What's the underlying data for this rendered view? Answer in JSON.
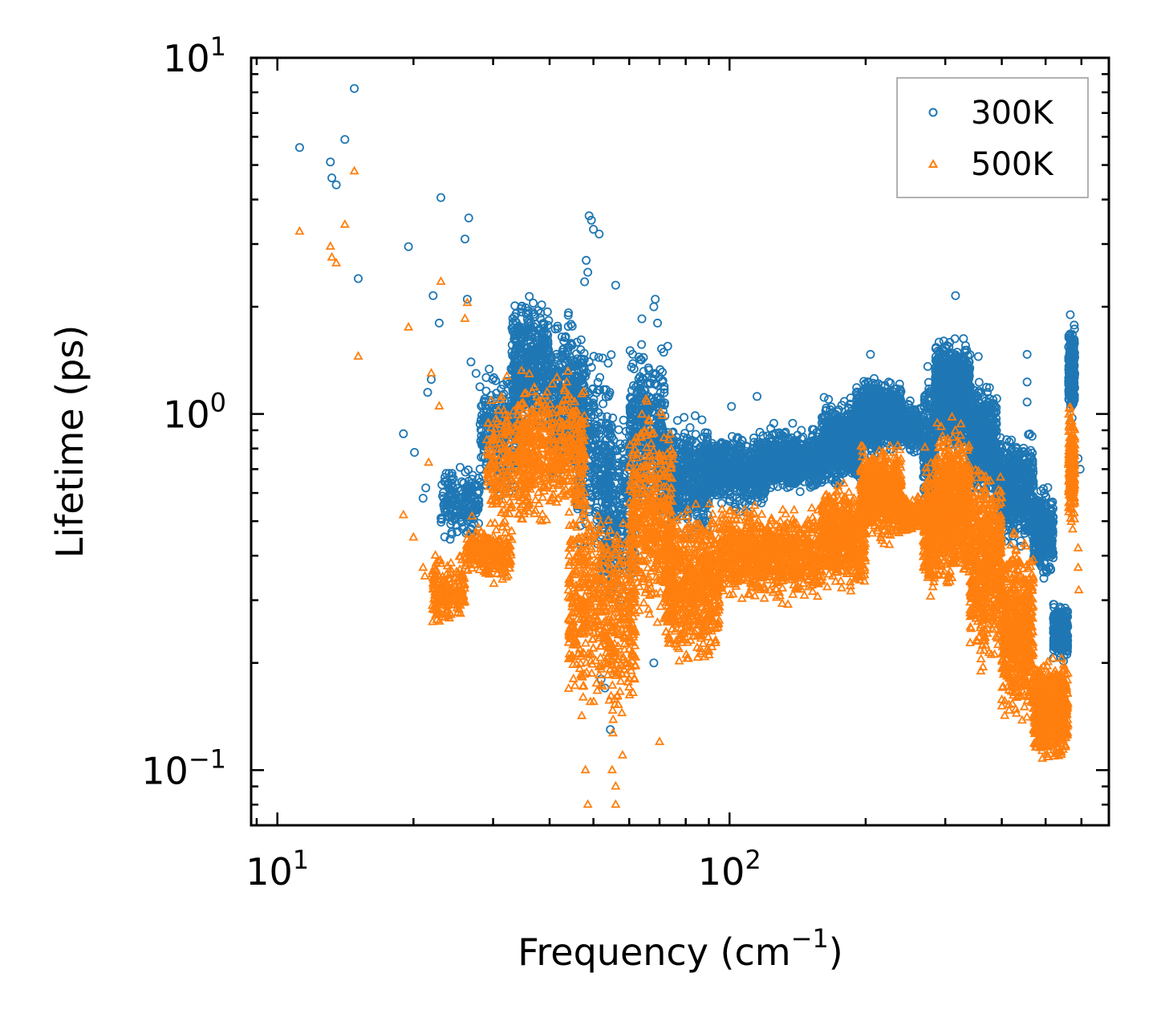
{
  "chart_data": {
    "type": "scatter",
    "title": "",
    "xlabel": "Frequency (cm",
    "xlabel_sup": "−1",
    "xlabel_end": ")",
    "ylabel": "Lifetime (ps)",
    "xscale": "log",
    "yscale": "log",
    "xlim": [
      8.75,
      690
    ],
    "ylim": [
      0.07,
      10
    ],
    "x_ticks": [
      {
        "base": "10",
        "exp": "1"
      },
      {
        "base": "10",
        "exp": "2"
      }
    ],
    "y_ticks": [
      {
        "base": "10",
        "exp": "1"
      },
      {
        "base": "10",
        "exp": "0"
      },
      {
        "base": "10",
        "exp": "−1"
      }
    ],
    "legend_position": "top-right",
    "series": [
      {
        "name": "300K",
        "color": "#1f77b4",
        "marker": "circle",
        "points": [
          [
            11.2,
            5.6
          ],
          [
            13.1,
            5.1
          ],
          [
            13.2,
            4.6
          ],
          [
            13.5,
            4.4
          ],
          [
            14.1,
            5.9
          ],
          [
            14.8,
            8.2
          ],
          [
            15.1,
            2.4
          ],
          [
            19.5,
            2.95
          ],
          [
            23.0,
            4.05
          ],
          [
            22.1,
            2.15
          ],
          [
            22.8,
            1.8
          ],
          [
            26.0,
            3.1
          ],
          [
            26.5,
            3.55
          ],
          [
            21.9,
            1.25
          ],
          [
            21.5,
            1.15
          ],
          [
            26.3,
            2.1
          ],
          [
            26.8,
            1.4
          ],
          [
            30.1,
            0.95
          ],
          [
            27.5,
            1.3
          ],
          [
            19.0,
            0.88
          ],
          [
            20.1,
            0.78
          ],
          [
            21.3,
            0.62
          ],
          [
            21.0,
            0.58
          ],
          [
            48.9,
            3.6
          ],
          [
            49.5,
            3.5
          ],
          [
            50.0,
            3.3
          ],
          [
            51.5,
            3.2
          ],
          [
            48.2,
            2.7
          ],
          [
            48.6,
            2.5
          ],
          [
            47.8,
            2.35
          ],
          [
            56.0,
            2.3
          ],
          [
            64.0,
            1.85
          ],
          [
            68.0,
            2.0
          ],
          [
            68.5,
            2.1
          ],
          [
            69.3,
            1.8
          ],
          [
            73.0,
            1.55
          ],
          [
            101.0,
            1.05
          ],
          [
            115.0,
            1.12
          ],
          [
            205.0,
            1.47
          ],
          [
            242.0,
            1.0
          ],
          [
            270.0,
            0.58
          ],
          [
            312.0,
            1.48
          ],
          [
            316.0,
            2.15
          ],
          [
            355.0,
            1.45
          ],
          [
            455.0,
            1.47
          ],
          [
            455.0,
            1.23
          ],
          [
            455.0,
            1.08
          ],
          [
            52.0,
            0.18
          ],
          [
            53.0,
            0.17
          ],
          [
            54.5,
            0.13
          ],
          [
            68.0,
            0.2
          ],
          [
            567.0,
            1.9
          ],
          [
            572.0,
            1.3
          ],
          [
            590.0,
            0.75
          ],
          [
            596.0,
            0.7
          ]
        ],
        "clusters": [
          {
            "x": [
              23,
              28
            ],
            "y": [
              0.42,
              0.75
            ],
            "n": 180
          },
          {
            "x": [
              28,
              34
            ],
            "y": [
              0.55,
              1.5
            ],
            "n": 260
          },
          {
            "x": [
              33,
              40
            ],
            "y": [
              0.8,
              2.3
            ],
            "n": 420
          },
          {
            "x": [
              40,
              48
            ],
            "y": [
              0.55,
              2.1
            ],
            "n": 420
          },
          {
            "x": [
              46,
              55
            ],
            "y": [
              0.35,
              1.7
            ],
            "n": 320
          },
          {
            "x": [
              52,
              62
            ],
            "y": [
              0.25,
              1.2
            ],
            "n": 260
          },
          {
            "x": [
              60,
              72
            ],
            "y": [
              0.5,
              1.7
            ],
            "n": 320
          },
          {
            "x": [
              70,
              90
            ],
            "y": [
              0.42,
              1.05
            ],
            "n": 520
          },
          {
            "x": [
              88,
              120
            ],
            "y": [
              0.52,
              0.92
            ],
            "n": 650
          },
          {
            "x": [
              120,
              160
            ],
            "y": [
              0.58,
              0.95
            ],
            "n": 650
          },
          {
            "x": [
              160,
              195
            ],
            "y": [
              0.6,
              1.15
            ],
            "n": 600
          },
          {
            "x": [
              190,
              240
            ],
            "y": [
              0.75,
              1.3
            ],
            "n": 750
          },
          {
            "x": [
              240,
              265
            ],
            "y": [
              0.75,
              1.15
            ],
            "n": 200
          },
          {
            "x": [
              268,
              285
            ],
            "y": [
              0.42,
              1.45
            ],
            "n": 260
          },
          {
            "x": [
              285,
              340
            ],
            "y": [
              0.75,
              1.75
            ],
            "n": 800
          },
          {
            "x": [
              340,
              390
            ],
            "y": [
              0.55,
              1.3
            ],
            "n": 550
          },
          {
            "x": [
              390,
              470
            ],
            "y": [
              0.4,
              0.95
            ],
            "n": 600
          },
          {
            "x": [
              470,
              520
            ],
            "y": [
              0.33,
              0.65
            ],
            "n": 350
          },
          {
            "x": [
              520,
              560
            ],
            "y": [
              0.2,
              0.3
            ],
            "n": 300
          },
          {
            "x": [
              562,
              580
            ],
            "y": [
              0.95,
              1.85
            ],
            "n": 240
          }
        ]
      },
      {
        "name": "500K",
        "color": "#ff7f0e",
        "marker": "triangle",
        "points": [
          [
            11.2,
            3.25
          ],
          [
            13.1,
            2.95
          ],
          [
            13.2,
            2.75
          ],
          [
            13.5,
            2.65
          ],
          [
            14.1,
            3.4
          ],
          [
            14.8,
            4.8
          ],
          [
            15.1,
            1.45
          ],
          [
            19.5,
            1.75
          ],
          [
            23.0,
            2.35
          ],
          [
            26.0,
            1.85
          ],
          [
            26.3,
            2.05
          ],
          [
            21.9,
            1.3
          ],
          [
            22.8,
            1.05
          ],
          [
            21.6,
            0.73
          ],
          [
            19.0,
            0.52
          ],
          [
            20.0,
            0.45
          ],
          [
            21.0,
            0.37
          ],
          [
            21.2,
            0.35
          ],
          [
            48.0,
            0.1
          ],
          [
            48.6,
            0.08
          ],
          [
            55.0,
            0.1
          ],
          [
            56.0,
            0.09
          ],
          [
            58.0,
            0.11
          ],
          [
            70.0,
            0.12
          ],
          [
            56.0,
            0.08
          ],
          [
            590.0,
            0.42
          ],
          [
            592.0,
            0.32
          ],
          [
            590.0,
            0.37
          ]
        ],
        "clusters": [
          {
            "x": [
              22,
              26
            ],
            "y": [
              0.24,
              0.42
            ],
            "n": 180
          },
          {
            "x": [
              26,
              33
            ],
            "y": [
              0.32,
              0.52
            ],
            "n": 240
          },
          {
            "x": [
              29,
              36
            ],
            "y": [
              0.42,
              1.3
            ],
            "n": 240
          },
          {
            "x": [
              34,
              48
            ],
            "y": [
              0.45,
              1.4
            ],
            "n": 520
          },
          {
            "x": [
              44,
              52
            ],
            "y": [
              0.13,
              0.7
            ],
            "n": 320
          },
          {
            "x": [
              52,
              62
            ],
            "y": [
              0.12,
              0.62
            ],
            "n": 320
          },
          {
            "x": [
              60,
              75
            ],
            "y": [
              0.22,
              1.2
            ],
            "n": 460
          },
          {
            "x": [
              72,
              95
            ],
            "y": [
              0.18,
              0.62
            ],
            "n": 700
          },
          {
            "x": [
              95,
              160
            ],
            "y": [
              0.28,
              0.58
            ],
            "n": 900
          },
          {
            "x": [
              160,
              200
            ],
            "y": [
              0.3,
              0.68
            ],
            "n": 600
          },
          {
            "x": [
              195,
              240
            ],
            "y": [
              0.42,
              0.85
            ],
            "n": 700
          },
          {
            "x": [
              240,
              265
            ],
            "y": [
              0.45,
              0.6
            ],
            "n": 200
          },
          {
            "x": [
              268,
              285
            ],
            "y": [
              0.28,
              0.82
            ],
            "n": 260
          },
          {
            "x": [
              285,
              340
            ],
            "y": [
              0.3,
              1.0
            ],
            "n": 800
          },
          {
            "x": [
              340,
              400
            ],
            "y": [
              0.18,
              0.8
            ],
            "n": 600
          },
          {
            "x": [
              400,
              470
            ],
            "y": [
              0.12,
              0.5
            ],
            "n": 600
          },
          {
            "x": [
              470,
              560
            ],
            "y": [
              0.1,
              0.22
            ],
            "n": 600
          },
          {
            "x": [
              562,
              580
            ],
            "y": [
              0.45,
              1.15
            ],
            "n": 240
          }
        ]
      }
    ]
  }
}
